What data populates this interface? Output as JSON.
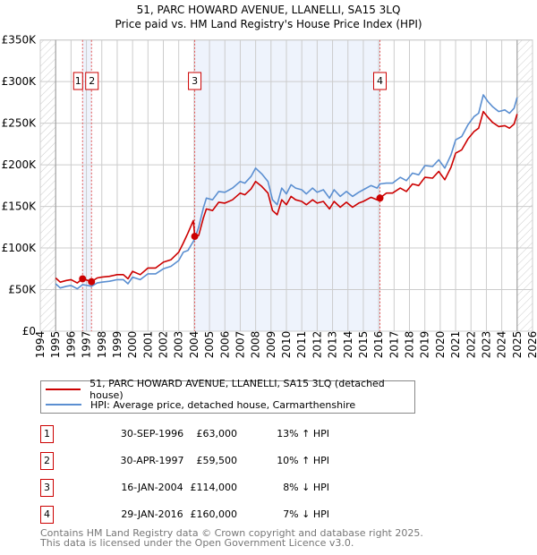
{
  "chart_data": {
    "type": "line",
    "title": "51, PARC HOWARD AVENUE, LLANELLI, SA15 3LQ",
    "subtitle": "Price paid vs. HM Land Registry's House Price Index (HPI)",
    "xlim": [
      1994,
      2026
    ],
    "ylim": [
      0,
      350000
    ],
    "y_ticks": [
      {
        "v": 0,
        "label": "£0"
      },
      {
        "v": 50000,
        "label": "£50K"
      },
      {
        "v": 100000,
        "label": "£100K"
      },
      {
        "v": 150000,
        "label": "£150K"
      },
      {
        "v": 200000,
        "label": "£200K"
      },
      {
        "v": 250000,
        "label": "£250K"
      },
      {
        "v": 300000,
        "label": "£300K"
      },
      {
        "v": 350000,
        "label": "£350K"
      }
    ],
    "x_ticks": [
      "1994",
      "1995",
      "1996",
      "1997",
      "1998",
      "1999",
      "2000",
      "2001",
      "2002",
      "2003",
      "2004",
      "2005",
      "2006",
      "2007",
      "2008",
      "2009",
      "2010",
      "2011",
      "2012",
      "2013",
      "2014",
      "2015",
      "2016",
      "2017",
      "2018",
      "2019",
      "2020",
      "2021",
      "2022",
      "2023",
      "2024",
      "2025",
      "2026"
    ],
    "grid": true,
    "colors": {
      "property": "#cc0000",
      "hpi": "#5b8fd1"
    },
    "x": [
      1995,
      1995.3,
      1995.7,
      1996,
      1996.4,
      1996.75,
      1997.1,
      1997.33,
      1997.7,
      1998,
      1998.5,
      1999,
      1999.4,
      1999.7,
      2000,
      2000.5,
      2001,
      2001.5,
      2002,
      2002.5,
      2003,
      2003.3,
      2003.6,
      2003.95,
      2004.04,
      2004.3,
      2004.6,
      2004.8,
      2005.2,
      2005.6,
      2006,
      2006.5,
      2007,
      2007.3,
      2007.7,
      2008,
      2008.4,
      2008.8,
      2009.1,
      2009.4,
      2009.7,
      2010,
      2010.3,
      2010.6,
      2011,
      2011.3,
      2011.7,
      2012,
      2012.4,
      2012.8,
      2013.1,
      2013.5,
      2013.9,
      2014.3,
      2014.7,
      2015,
      2015.5,
      2015.9,
      2016.08,
      2016.5,
      2016.9,
      2017.4,
      2017.8,
      2018.2,
      2018.6,
      2019,
      2019.5,
      2019.9,
      2020.3,
      2020.7,
      2021,
      2021.4,
      2021.8,
      2022.2,
      2022.5,
      2022.8,
      2023.1,
      2023.4,
      2023.8,
      2024.2,
      2024.5,
      2024.8,
      2025
    ],
    "series": [
      {
        "name": "51, PARC HOWARD AVENUE, LLANELLI, SA15 3LQ (detached house)",
        "unit": "£K",
        "values": [
          64,
          59,
          61,
          62,
          58,
          63,
          61,
          59.5,
          64,
          65,
          66,
          68,
          68,
          63,
          72,
          68,
          76,
          76,
          83,
          86,
          95,
          106,
          118,
          133,
          114,
          115,
          136,
          147,
          145,
          155,
          154,
          158,
          166,
          164,
          171,
          180,
          174,
          166,
          145,
          140,
          158,
          152,
          162,
          158,
          156,
          152,
          158,
          154,
          156,
          147,
          156,
          149,
          155,
          149,
          154,
          156,
          161,
          158,
          160,
          166,
          166,
          172,
          168,
          177,
          175,
          185,
          184,
          192,
          182,
          197,
          214,
          218,
          231,
          240,
          244,
          264,
          257,
          251,
          246,
          247,
          244,
          249,
          261
        ]
      },
      {
        "name": "HPI: Average price, detached house, Carmarthenshire",
        "unit": "£K",
        "values": [
          57,
          52,
          54,
          55,
          51,
          56,
          55,
          54,
          58,
          59,
          60,
          62,
          62,
          57,
          65,
          62,
          69,
          69,
          75,
          78,
          85,
          95,
          97,
          108,
          111,
          125,
          148,
          160,
          158,
          168,
          167,
          172,
          180,
          178,
          186,
          196,
          189,
          180,
          158,
          152,
          172,
          165,
          176,
          172,
          170,
          165,
          172,
          167,
          170,
          160,
          170,
          162,
          168,
          162,
          167,
          170,
          175,
          172,
          177,
          178,
          178,
          185,
          181,
          190,
          188,
          199,
          198,
          206,
          196,
          212,
          230,
          234,
          248,
          258,
          262,
          284,
          276,
          270,
          264,
          266,
          262,
          268,
          281
        ]
      }
    ],
    "sales": [
      {
        "num": "1",
        "x": 1996.75,
        "price": 63000,
        "date": "30-SEP-1996",
        "price_label": "£63,000",
        "hpi": "13% ↑ HPI"
      },
      {
        "num": "2",
        "x": 1997.33,
        "price": 59500,
        "date": "30-APR-1997",
        "price_label": "£59,500",
        "hpi": "10% ↑ HPI"
      },
      {
        "num": "3",
        "x": 2004.04,
        "price": 114000,
        "date": "16-JAN-2004",
        "price_label": "£114,000",
        "hpi": "8% ↓ HPI"
      },
      {
        "num": "4",
        "x": 2016.08,
        "price": 160000,
        "date": "29-JAN-2016",
        "price_label": "£160,000",
        "hpi": "7% ↓ HPI"
      }
    ]
  },
  "legend": {
    "property": "51, PARC HOWARD AVENUE, LLANELLI, SA15 3LQ (detached house)",
    "hpi": "HPI: Average price, detached house, Carmarthenshire"
  },
  "footer": {
    "line1": "Contains HM Land Registry data © Crown copyright and database right 2025.",
    "line2": "This data is licensed under the Open Government Licence v3.0."
  }
}
